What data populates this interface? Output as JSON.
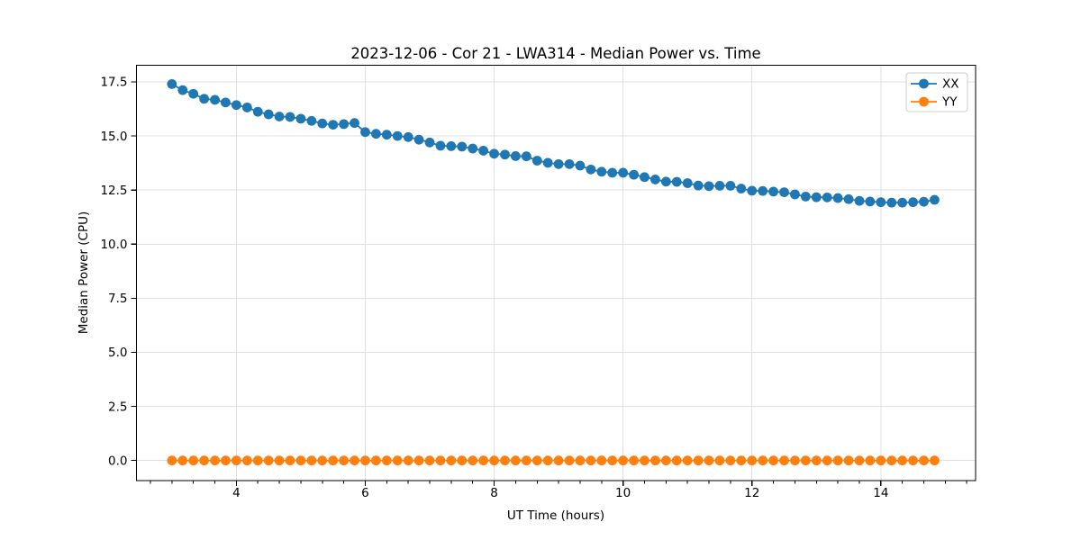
{
  "figure": {
    "background": "#ffffff",
    "spine_color": "#000000",
    "grid_color": "#e0e0e0"
  },
  "chart_data": {
    "type": "line",
    "title": "2023-12-06 - Cor 21 - LWA314 - Median Power vs. Time",
    "xlabel": "UT Time (hours)",
    "ylabel": "Median Power (CPU)",
    "xlim": [
      2.45,
      15.47
    ],
    "ylim": [
      -0.93,
      18.27
    ],
    "grid": true,
    "legend_position": "upper right",
    "x_ticks": [
      4,
      6,
      8,
      10,
      12,
      14
    ],
    "x_tick_labels": [
      "4",
      "6",
      "8",
      "10",
      "12",
      "14"
    ],
    "x_minor_step": 0.333333,
    "y_ticks": [
      0,
      2.5,
      5,
      7.5,
      10,
      12.5,
      15,
      17.5
    ],
    "y_tick_labels": [
      "0.0",
      "2.5",
      "5.0",
      "7.5",
      "10.0",
      "12.5",
      "15.0",
      "17.5"
    ],
    "x": [
      3.0,
      3.167,
      3.333,
      3.5,
      3.667,
      3.833,
      4.0,
      4.167,
      4.333,
      4.5,
      4.667,
      4.833,
      5.0,
      5.167,
      5.333,
      5.5,
      5.667,
      5.833,
      6.0,
      6.167,
      6.333,
      6.5,
      6.667,
      6.833,
      7.0,
      7.167,
      7.333,
      7.5,
      7.667,
      7.833,
      8.0,
      8.167,
      8.333,
      8.5,
      8.667,
      8.833,
      9.0,
      9.167,
      9.333,
      9.5,
      9.667,
      9.833,
      10.0,
      10.167,
      10.333,
      10.5,
      10.667,
      10.833,
      11.0,
      11.167,
      11.333,
      11.5,
      11.667,
      11.833,
      12.0,
      12.167,
      12.333,
      12.5,
      12.667,
      12.833,
      13.0,
      13.167,
      13.333,
      13.5,
      13.667,
      13.833,
      14.0,
      14.167,
      14.333,
      14.5,
      14.667,
      14.833
    ],
    "series": [
      {
        "name": "XX",
        "color": "#1f77b4",
        "values": [
          17.4,
          17.12,
          16.95,
          16.72,
          16.67,
          16.55,
          16.43,
          16.32,
          16.12,
          16.0,
          15.9,
          15.88,
          15.8,
          15.7,
          15.58,
          15.52,
          15.55,
          15.6,
          15.18,
          15.1,
          15.06,
          15.0,
          14.95,
          14.83,
          14.7,
          14.55,
          14.53,
          14.51,
          14.42,
          14.32,
          14.18,
          14.14,
          14.07,
          14.06,
          13.86,
          13.76,
          13.7,
          13.7,
          13.63,
          13.45,
          13.35,
          13.3,
          13.3,
          13.21,
          13.1,
          12.99,
          12.89,
          12.88,
          12.82,
          12.71,
          12.68,
          12.7,
          12.7,
          12.57,
          12.47,
          12.46,
          12.43,
          12.4,
          12.3,
          12.2,
          12.17,
          12.16,
          12.13,
          12.08,
          12.0,
          11.97,
          11.94,
          11.92,
          11.92,
          11.94,
          11.96,
          12.05
        ]
      },
      {
        "name": "YY",
        "color": "#ff7f0e",
        "values": [
          0,
          0,
          0,
          0,
          0,
          0,
          0,
          0,
          0,
          0,
          0,
          0,
          0,
          0,
          0,
          0,
          0,
          0,
          0,
          0,
          0,
          0,
          0,
          0,
          0,
          0,
          0,
          0,
          0,
          0,
          0,
          0,
          0,
          0,
          0,
          0,
          0,
          0,
          0,
          0,
          0,
          0,
          0,
          0,
          0,
          0,
          0,
          0,
          0,
          0,
          0,
          0,
          0,
          0,
          0,
          0,
          0,
          0,
          0,
          0,
          0,
          0,
          0,
          0,
          0,
          0,
          0,
          0,
          0,
          0,
          0,
          0
        ]
      }
    ]
  }
}
